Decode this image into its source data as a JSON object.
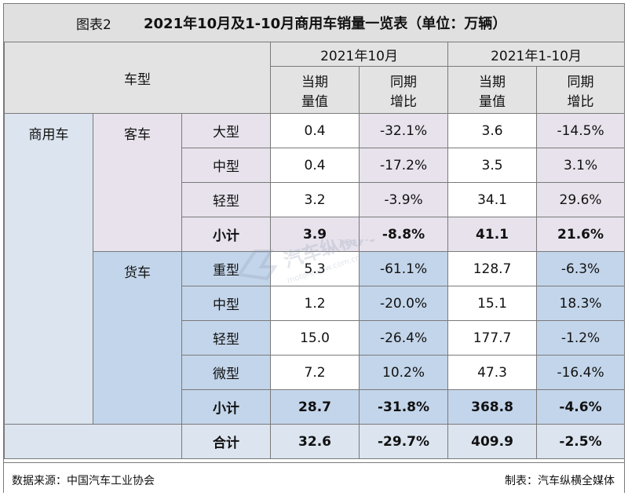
{
  "title": {
    "label": "图表2",
    "main": "2021年10月及1-10月商用车销量一览表（单位：万辆）"
  },
  "header": {
    "vehicle_type": "车型",
    "period1": "2021年10月",
    "period2": "2021年1-10月",
    "col_current": "当期量值",
    "col_current_l1": "当期",
    "col_current_l2": "量值",
    "col_yoy_l1": "同期",
    "col_yoy_l2": "增比"
  },
  "category": "商用车",
  "bus": {
    "label": "客车",
    "rows": [
      {
        "type": "大型",
        "m_val": "0.4",
        "m_yoy": "-32.1%",
        "y_val": "3.6",
        "y_yoy": "-14.5%"
      },
      {
        "type": "中型",
        "m_val": "0.4",
        "m_yoy": "-17.2%",
        "y_val": "3.5",
        "y_yoy": "3.1%"
      },
      {
        "type": "轻型",
        "m_val": "3.2",
        "m_yoy": "-3.9%",
        "y_val": "34.1",
        "y_yoy": "29.6%"
      }
    ],
    "subtotal": {
      "label": "小计",
      "m_val": "3.9",
      "m_yoy": "-8.8%",
      "y_val": "41.1",
      "y_yoy": "21.6%"
    }
  },
  "truck": {
    "label": "货车",
    "rows": [
      {
        "type": "重型",
        "m_val": "5.3",
        "m_yoy": "-61.1%",
        "y_val": "128.7",
        "y_yoy": "-6.3%"
      },
      {
        "type": "中型",
        "m_val": "1.2",
        "m_yoy": "-20.0%",
        "y_val": "15.1",
        "y_yoy": "18.3%"
      },
      {
        "type": "轻型",
        "m_val": "15.0",
        "m_yoy": "-26.4%",
        "y_val": "177.7",
        "y_yoy": "-1.2%"
      },
      {
        "type": "微型",
        "m_val": "7.2",
        "m_yoy": "10.2%",
        "y_val": "47.3",
        "y_yoy": "-16.4%"
      }
    ],
    "subtotal": {
      "label": "小计",
      "m_val": "28.7",
      "m_yoy": "-31.8%",
      "y_val": "368.8",
      "y_yoy": "-4.6%"
    }
  },
  "total": {
    "label": "合计",
    "m_val": "32.6",
    "m_yoy": "-29.7%",
    "y_val": "409.9",
    "y_yoy": "-2.5%"
  },
  "footer": {
    "source": "数据来源：中国汽车工业协会",
    "maker": "制表：汽车纵横全媒体"
  },
  "watermark": {
    "text": "汽车纵横网",
    "url": "motoreview.com.cn"
  }
}
